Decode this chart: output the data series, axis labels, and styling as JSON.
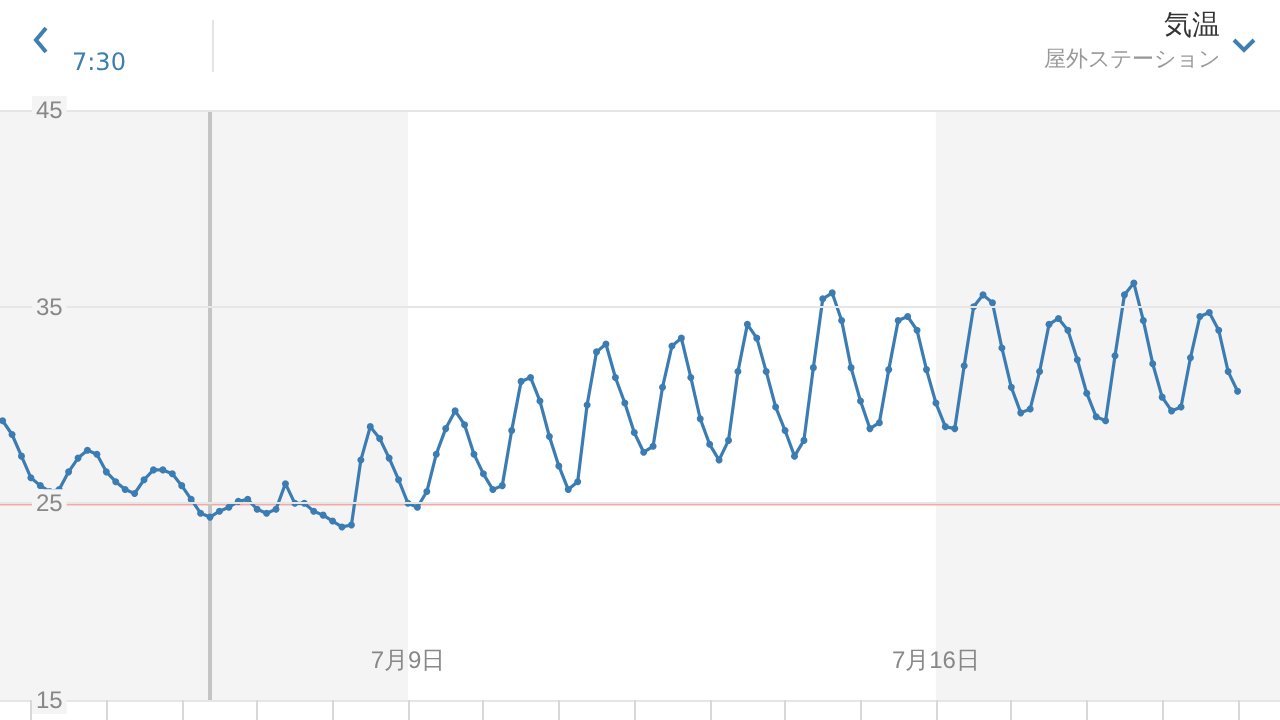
{
  "chart_data": {
    "type": "line",
    "title": "気温",
    "subtitle": "屋外ステーション",
    "annotations": [
      "7:30"
    ],
    "x": [
      "--07-03T15:00",
      "--07-03T18:00",
      "--07-03T21:00",
      "--07-04T00:00",
      "--07-04T03:00",
      "--07-04T06:00",
      "--07-04T09:00",
      "--07-04T12:00",
      "--07-04T15:00",
      "--07-04T18:00",
      "--07-04T21:00",
      "--07-05T00:00",
      "--07-05T03:00",
      "--07-05T06:00",
      "--07-05T09:00",
      "--07-05T12:00",
      "--07-05T15:00",
      "--07-05T18:00",
      "--07-05T21:00",
      "--07-06T00:00",
      "--07-06T03:00",
      "--07-06T06:00",
      "--07-06T09:00",
      "--07-06T12:00",
      "--07-06T15:00",
      "--07-06T18:00",
      "--07-06T21:00",
      "--07-07T00:00",
      "--07-07T03:00",
      "--07-07T06:00",
      "--07-07T09:00",
      "--07-07T12:00",
      "--07-07T15:00",
      "--07-07T18:00",
      "--07-07T21:00",
      "--07-08T00:00",
      "--07-08T03:00",
      "--07-08T06:00",
      "--07-08T09:00",
      "--07-08T12:00",
      "--07-08T15:00",
      "--07-08T18:00",
      "--07-08T21:00",
      "--07-09T00:00",
      "--07-09T03:00",
      "--07-09T06:00",
      "--07-09T09:00",
      "--07-09T12:00",
      "--07-09T15:00",
      "--07-09T18:00",
      "--07-09T21:00",
      "--07-10T00:00",
      "--07-10T03:00",
      "--07-10T06:00",
      "--07-10T09:00",
      "--07-10T12:00",
      "--07-10T15:00",
      "--07-10T18:00",
      "--07-10T21:00",
      "--07-11T00:00",
      "--07-11T03:00",
      "--07-11T06:00",
      "--07-11T09:00",
      "--07-11T12:00",
      "--07-11T15:00",
      "--07-11T18:00",
      "--07-11T21:00",
      "--07-12T00:00",
      "--07-12T03:00",
      "--07-12T06:00",
      "--07-12T09:00",
      "--07-12T12:00",
      "--07-12T15:00",
      "--07-12T18:00",
      "--07-12T21:00",
      "--07-13T00:00",
      "--07-13T03:00",
      "--07-13T06:00",
      "--07-13T09:00",
      "--07-13T12:00",
      "--07-13T15:00",
      "--07-13T18:00",
      "--07-13T21:00",
      "--07-14T00:00",
      "--07-14T03:00",
      "--07-14T06:00",
      "--07-14T09:00",
      "--07-14T12:00",
      "--07-14T15:00",
      "--07-14T18:00",
      "--07-14T21:00",
      "--07-15T00:00",
      "--07-15T03:00",
      "--07-15T06:00",
      "--07-15T09:00",
      "--07-15T12:00",
      "--07-15T15:00",
      "--07-15T18:00",
      "--07-15T21:00",
      "--07-16T00:00",
      "--07-16T03:00",
      "--07-16T06:00",
      "--07-16T09:00",
      "--07-16T12:00",
      "--07-16T15:00",
      "--07-16T18:00",
      "--07-16T21:00",
      "--07-17T00:00",
      "--07-17T03:00",
      "--07-17T06:00",
      "--07-17T09:00",
      "--07-17T12:00",
      "--07-17T15:00",
      "--07-17T18:00",
      "--07-17T21:00",
      "--07-18T00:00",
      "--07-18T03:00",
      "--07-18T06:00",
      "--07-18T09:00",
      "--07-18T12:00",
      "--07-18T15:00",
      "--07-18T18:00",
      "--07-18T21:00",
      "--07-19T00:00",
      "--07-19T03:00",
      "--07-19T06:00",
      "--07-19T09:00",
      "--07-19T12:00",
      "--07-19T15:00",
      "--07-19T18:00",
      "--07-19T21:00",
      "--07-20T00:00"
    ],
    "series": [
      {
        "color": "#3b7db3",
        "values": [
          29.2,
          28.5,
          27.4,
          26.3,
          25.9,
          25.6,
          25.7,
          26.6,
          27.3,
          27.7,
          27.5,
          26.6,
          26.1,
          25.7,
          25.5,
          26.2,
          26.7,
          26.7,
          26.5,
          25.9,
          25.2,
          24.5,
          24.3,
          24.6,
          24.8,
          25.1,
          25.2,
          24.7,
          24.5,
          24.7,
          26.0,
          25.0,
          25.0,
          24.6,
          24.4,
          24.1,
          23.8,
          23.9,
          27.2,
          28.9,
          28.3,
          27.3,
          26.2,
          25.0,
          24.8,
          25.6,
          27.5,
          28.8,
          29.7,
          29.0,
          27.5,
          26.5,
          25.7,
          25.9,
          28.7,
          31.2,
          31.4,
          30.2,
          28.4,
          26.9,
          25.7,
          26.1,
          30.0,
          32.7,
          33.1,
          31.4,
          30.1,
          28.6,
          27.6,
          27.9,
          30.9,
          33.0,
          33.4,
          31.4,
          29.3,
          28.0,
          27.2,
          28.2,
          31.7,
          34.1,
          33.4,
          31.7,
          29.9,
          28.7,
          27.4,
          28.2,
          31.9,
          35.4,
          35.7,
          34.3,
          31.9,
          30.2,
          28.8,
          29.1,
          31.8,
          34.3,
          34.5,
          33.8,
          31.8,
          30.1,
          28.9,
          28.8,
          32.0,
          35.0,
          35.6,
          35.2,
          32.9,
          30.9,
          29.6,
          29.8,
          31.7,
          34.1,
          34.4,
          33.8,
          32.3,
          30.6,
          29.4,
          29.2,
          32.5,
          35.6,
          36.2,
          34.3,
          32.1,
          30.4,
          29.7,
          29.9,
          32.4,
          34.5,
          34.7,
          33.8,
          31.7,
          30.7
        ]
      }
    ],
    "xlim": [
      "--07-03T14:10",
      "--07-20T13:30"
    ],
    "ylim": [
      15,
      45
    ],
    "xticks": [
      {
        "value": "--07-04",
        "label": null
      },
      {
        "value": "--07-05",
        "label": null
      },
      {
        "value": "--07-06",
        "label": null
      },
      {
        "value": "--07-07",
        "label": null
      },
      {
        "value": "--07-08",
        "label": null
      },
      {
        "value": "--07-09",
        "label": "7月9日"
      },
      {
        "value": "--07-10",
        "label": null
      },
      {
        "value": "--07-11",
        "label": null
      },
      {
        "value": "--07-12",
        "label": null
      },
      {
        "value": "--07-13",
        "label": null
      },
      {
        "value": "--07-14",
        "label": null
      },
      {
        "value": "--07-15",
        "label": null
      },
      {
        "value": "--07-16",
        "label": "7月16日"
      },
      {
        "value": "--07-17",
        "label": null
      },
      {
        "value": "--07-18",
        "label": null
      },
      {
        "value": "--07-19",
        "label": null
      },
      {
        "value": "--07-20",
        "label": null
      }
    ],
    "yticks": [
      15,
      25,
      35,
      45
    ],
    "ref_lines": [
      {
        "axis": "y",
        "value": 25,
        "color": "#f3a9a6"
      },
      {
        "axis": "x",
        "value": "--07-06T09:00",
        "color": "#c4c4c4"
      }
    ],
    "bands": [
      {
        "axis": "x",
        "from": "--07-09",
        "to": "--07-16",
        "color": "#ffffff"
      }
    ],
    "grid": "y",
    "marker": "circle",
    "line_style": "solid"
  }
}
